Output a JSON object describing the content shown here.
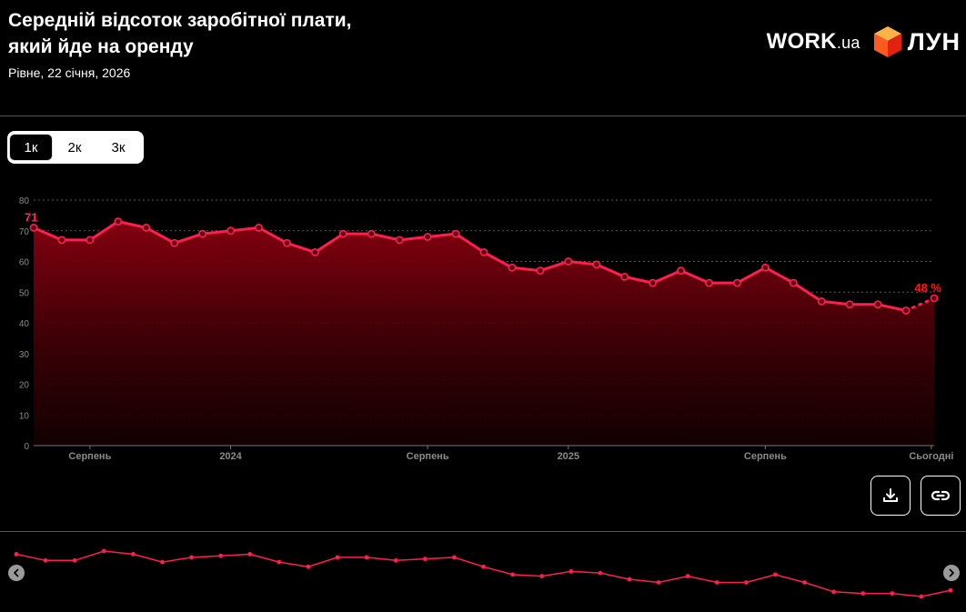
{
  "header": {
    "title": "Середній відсоток заробітної плати, який йде на оренду",
    "subtitle": "Рівне, 22 січня, 2026",
    "work_logo_main": "WORK",
    "work_logo_suffix": ".ua",
    "lun_logo_text": "ЛУН"
  },
  "toggle": {
    "options": [
      "1к",
      "2к",
      "3к"
    ],
    "selected": "1к"
  },
  "buttons": {
    "download_icon": "download-icon",
    "link_icon": "link-icon"
  },
  "colors": {
    "line": "#ff1f4f",
    "area_top": "#8a0010",
    "background": "#000000",
    "last_label": "#ff1a1a"
  },
  "chart_data": {
    "type": "area",
    "title": "Середній відсоток заробітної плати, який йде на оренду",
    "ylim": [
      0,
      80
    ],
    "yticks": [
      0,
      10,
      20,
      30,
      40,
      50,
      60,
      70,
      80
    ],
    "grid": true,
    "x_tick_labels": [
      "Серпень",
      "2024",
      "Серпень",
      "2025",
      "Серпень",
      "Сьогодні"
    ],
    "values": [
      71,
      67,
      67,
      73,
      71,
      66,
      69,
      70,
      71,
      66,
      63,
      69,
      69,
      67,
      68,
      69,
      63,
      58,
      57,
      60,
      59,
      55,
      53,
      57,
      53,
      53,
      58,
      53,
      47,
      46,
      46,
      44,
      48
    ],
    "first_label": "71",
    "last_label": "48 %"
  }
}
